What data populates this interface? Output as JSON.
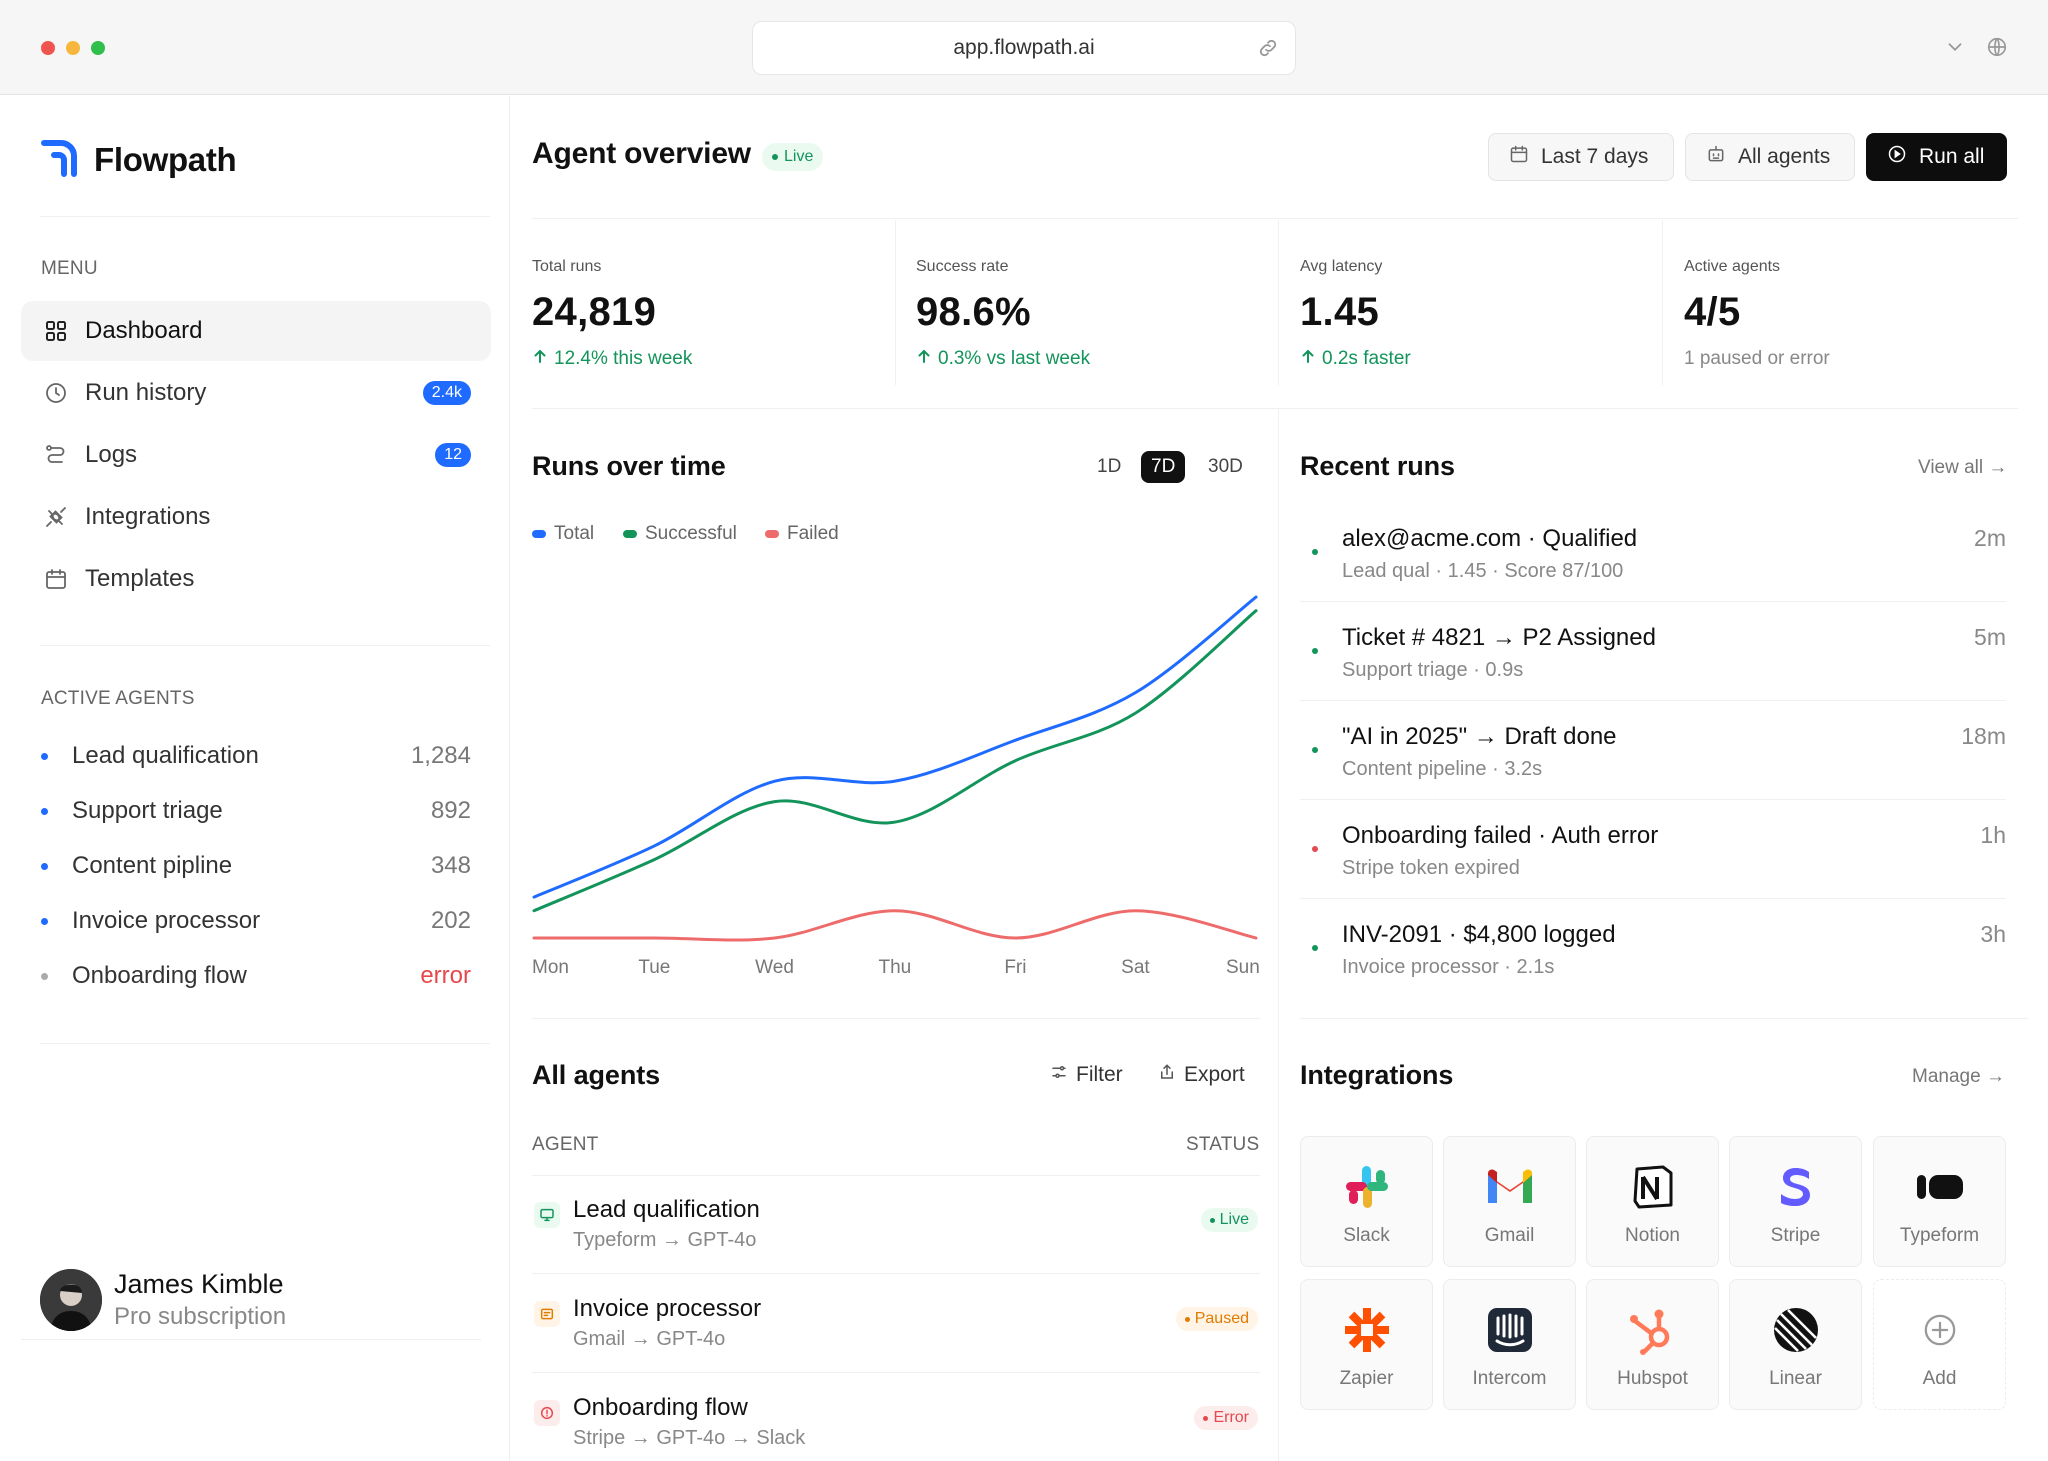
{
  "browser": {
    "url": "app.flowpath.ai"
  },
  "brand": {
    "name": "Flowpath",
    "accent": "#1f6bff"
  },
  "sidebar": {
    "menu_label": "MENU",
    "items": [
      {
        "label": "Dashboard",
        "icon": "grid-icon",
        "active": true
      },
      {
        "label": "Run history",
        "icon": "clock-icon",
        "badge": "2.4k"
      },
      {
        "label": "Logs",
        "icon": "route-icon",
        "badge": "12"
      },
      {
        "label": "Integrations",
        "icon": "plug-icon"
      },
      {
        "label": "Templates",
        "icon": "calendar-icon"
      }
    ],
    "agents_label": "ACTIVE AGENTS",
    "agents": [
      {
        "name": "Lead qualification",
        "count": "1,284",
        "color": "#1f6bff"
      },
      {
        "name": "Support triage",
        "count": "892",
        "color": "#1f6bff"
      },
      {
        "name": "Content pipline",
        "count": "348",
        "color": "#1f6bff"
      },
      {
        "name": "Invoice processor",
        "count": "202",
        "color": "#1f6bff"
      },
      {
        "name": "Onboarding flow",
        "count": "error",
        "color": "#aaaaaa"
      }
    ],
    "user": {
      "name": "James Kimble",
      "plan": "Pro subscription"
    }
  },
  "header": {
    "title": "Agent overview",
    "live_label": "Live",
    "date_button": "Last 7 days",
    "agents_button": "All agents",
    "run_button": "Run all"
  },
  "stats": [
    {
      "label": "Total runs",
      "value": "24,819",
      "sub": "12.4% this week",
      "trend": "up"
    },
    {
      "label": "Success rate",
      "value": "98.6%",
      "sub": "0.3% vs last week",
      "trend": "up"
    },
    {
      "label": "Avg latency",
      "value": "1.45",
      "sub": "0.2s faster",
      "trend": "up"
    },
    {
      "label": "Active agents",
      "value": "4/5",
      "sub": "1 paused or error",
      "trend": "none"
    }
  ],
  "runs_chart": {
    "title": "Runs over time",
    "ranges": [
      "1D",
      "7D",
      "30D"
    ],
    "selected_range": "7D"
  },
  "chart_data": {
    "type": "line",
    "categories": [
      "Mon",
      "Tue",
      "Wed",
      "Thu",
      "Fri",
      "Sat",
      "Sun"
    ],
    "series": [
      {
        "name": "Total",
        "color": "#1f6bff",
        "values": [
          12,
          27,
          46,
          46,
          58,
          72,
          100
        ]
      },
      {
        "name": "Successful",
        "color": "#12945a",
        "values": [
          8,
          23,
          40,
          34,
          52,
          66,
          96
        ]
      },
      {
        "name": "Failed",
        "color": "#ee6b6b",
        "values": [
          0,
          0,
          0,
          8,
          0,
          8,
          0
        ]
      }
    ],
    "ylim": [
      0,
      105
    ],
    "grid": false,
    "legend": "top-left"
  },
  "recent_runs": {
    "title": "Recent runs",
    "view_all": "View all →",
    "items": [
      {
        "title": "alex@acme.com · Qualified",
        "sub": "Lead qual · 1.45 · Score 87/100",
        "time": "2m",
        "status_color": "#12945a"
      },
      {
        "title": "Ticket # 4821 → P2 Assigned",
        "sub": "Support triage · 0.9s",
        "time": "5m",
        "status_color": "#12945a"
      },
      {
        "title": "\"AI in 2025\" → Draft done",
        "sub": "Content pipeline · 3.2s",
        "time": "18m",
        "status_color": "#12945a"
      },
      {
        "title": "Onboarding failed · Auth error",
        "sub": "Stripe token expired",
        "time": "1h",
        "status_color": "#e5484d"
      },
      {
        "title": "INV-2091 · $4,800 logged",
        "sub": "Invoice processor · 2.1s",
        "time": "3h",
        "status_color": "#12945a"
      }
    ]
  },
  "all_agents": {
    "title": "All agents",
    "filter": "Filter",
    "export": "Export",
    "col_agent": "AGENT",
    "col_status": "STATUS",
    "rows": [
      {
        "name": "Lead qualification",
        "sub": "Typeform → GPT-4o",
        "status": "Live",
        "status_color": "#12945a",
        "status_bg": "#eafaf1",
        "icon": "monitor-icon",
        "icon_bg": "#eafaf1",
        "icon_color": "#12945a"
      },
      {
        "name": "Invoice processor",
        "sub": "Gmail → GPT-4o",
        "status": "Paused",
        "status_color": "#e07b00",
        "status_bg": "#fff4e5",
        "icon": "receipt-icon",
        "icon_bg": "#fff4e5",
        "icon_color": "#e07b00"
      },
      {
        "name": "Onboarding flow",
        "sub": "Stripe → GPT-4o → Slack",
        "status": "Error",
        "status_color": "#e5484d",
        "status_bg": "#fdecec",
        "icon": "alert-icon",
        "icon_bg": "#fdecec",
        "icon_color": "#e5484d"
      }
    ]
  },
  "integrations": {
    "title": "Integrations",
    "manage": "Manage →",
    "items": [
      {
        "name": "Slack",
        "icon": "slack-icon"
      },
      {
        "name": "Gmail",
        "icon": "gmail-icon"
      },
      {
        "name": "Notion",
        "icon": "notion-icon"
      },
      {
        "name": "Stripe",
        "icon": "stripe-icon"
      },
      {
        "name": "Typeform",
        "icon": "typeform-icon"
      },
      {
        "name": "Zapier",
        "icon": "zapier-icon"
      },
      {
        "name": "Intercom",
        "icon": "intercom-icon"
      },
      {
        "name": "Hubspot",
        "icon": "hubspot-icon"
      },
      {
        "name": "Linear",
        "icon": "linear-icon"
      },
      {
        "name": "Add",
        "icon": "plus-circle-icon"
      }
    ]
  }
}
